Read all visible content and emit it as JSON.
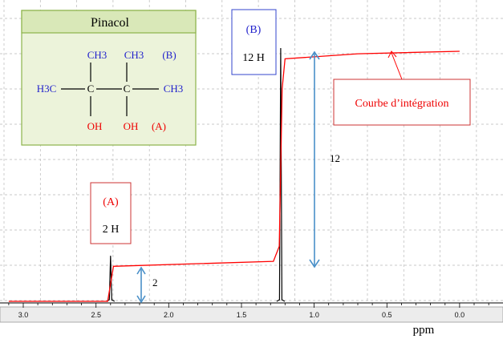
{
  "chart_data": {
    "type": "line",
    "x_unit_label": "ppm",
    "x_range": [
      3.1,
      0.0
    ],
    "x_reversed": true,
    "x_ticks": [
      "3.0",
      "2.5",
      "2.0",
      "1.5",
      "1.0",
      "0.5",
      "0.0"
    ],
    "x_tick_values": [
      3.0,
      2.5,
      2.0,
      1.5,
      1.0,
      0.5,
      0.0
    ],
    "grid": true,
    "spectrum_peaks": [
      {
        "ppm": 2.4,
        "height": 0.18
      },
      {
        "ppm": 1.23,
        "height": 1.0
      }
    ],
    "integration_curve": {
      "x": [
        3.1,
        2.42,
        2.4,
        2.38,
        1.28,
        1.24,
        1.22,
        1.2,
        0.7,
        0.0
      ],
      "y": [
        0.0,
        0.0,
        0.07,
        0.14,
        0.16,
        0.22,
        0.85,
        0.97,
        0.99,
        1.0
      ]
    },
    "integrals": [
      {
        "label": "2",
        "ppm": 2.2
      },
      {
        "label": "12",
        "ppm": 1.0
      }
    ]
  },
  "molecule_box": {
    "title": "Pinacol",
    "ch3_top_left": "CH3",
    "ch3_top_right": "CH3",
    "group_b": "(B)",
    "h3c_left": "H3C",
    "c_left": "C",
    "c_right": "C",
    "ch3_right": "CH3",
    "oh_left": "OH",
    "oh_right": "OH",
    "group_a": "(A)"
  },
  "peak_labels": {
    "a_group": "(A)",
    "a_count": "2 H",
    "b_group": "(B)",
    "b_count": "12 H"
  },
  "integration_label": "Courbe d’intégration",
  "colors": {
    "spectrum": "#000000",
    "integration": "#ff0000",
    "arrow": "#4a90c8",
    "ch3_blue": "#2222cc",
    "oh_red": "#ee0000",
    "box_fill": "#ecf3da",
    "box_border": "#8db34a"
  }
}
